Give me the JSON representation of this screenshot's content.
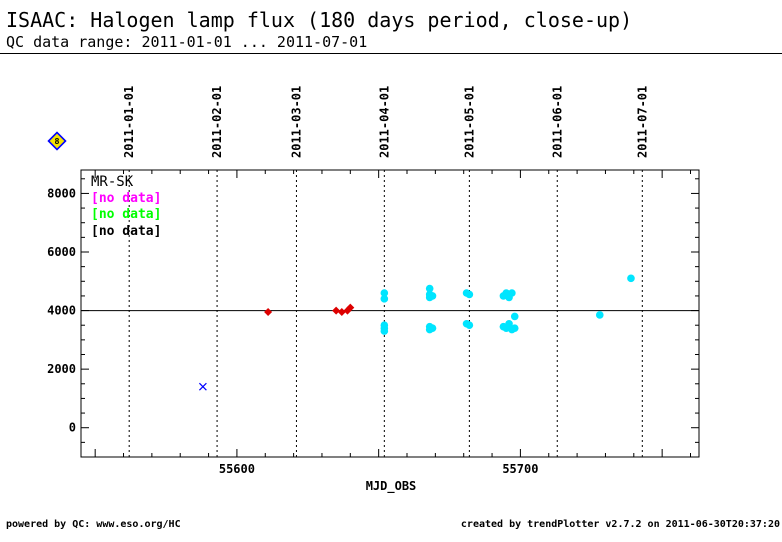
{
  "header": {
    "title": "ISAAC: Halogen lamp flux (180 days period, close-up)",
    "subtitle": "QC data range: 2011-01-01 ... 2011-07-01"
  },
  "footer": {
    "left": "powered by QC: www.eso.org/HC",
    "right": "created by trendPlotter v2.7.2 on 2011-06-30T20:37:20"
  },
  "badge": {
    "label": "8",
    "fill": "#f5e400",
    "stroke": "#0000ff"
  },
  "chart_data": {
    "type": "scatter",
    "xlabel": "MJD_OBS",
    "ylabel": "",
    "xlim": [
      55545,
      55763
    ],
    "ylim": [
      -1000,
      8800
    ],
    "xticks": [
      55600,
      55700
    ],
    "yticks": [
      0,
      2000,
      4000,
      6000,
      8000
    ],
    "reference_line": 4000,
    "month_lines": [
      {
        "x": 55562,
        "label": "2011-01-01"
      },
      {
        "x": 55593,
        "label": "2011-02-01"
      },
      {
        "x": 55621,
        "label": "2011-03-01"
      },
      {
        "x": 55652,
        "label": "2011-04-01"
      },
      {
        "x": 55682,
        "label": "2011-05-01"
      },
      {
        "x": 55713,
        "label": "2011-06-01"
      },
      {
        "x": 55743,
        "label": "2011-07-01"
      }
    ],
    "legend": {
      "title": "MR-SK",
      "entries": [
        {
          "text": "[no data]",
          "color": "#ff00ff"
        },
        {
          "text": "[no data]",
          "color": "#00ff00"
        },
        {
          "text": "[no data]",
          "color": "#000000"
        }
      ]
    },
    "series": [
      {
        "marker": "diamond",
        "color": "#dd0000",
        "points": [
          [
            55611,
            3950
          ],
          [
            55635,
            4000
          ],
          [
            55637,
            3950
          ],
          [
            55639,
            4000
          ],
          [
            55640,
            4100
          ]
        ]
      },
      {
        "marker": "circle",
        "color": "#00e5ff",
        "points": [
          [
            55652,
            4600
          ],
          [
            55652,
            4400
          ],
          [
            55652,
            3500
          ],
          [
            55652,
            3400
          ],
          [
            55652,
            3300
          ],
          [
            55668,
            4750
          ],
          [
            55668,
            4550
          ],
          [
            55668,
            4450
          ],
          [
            55668,
            3450
          ],
          [
            55668,
            3350
          ],
          [
            55669,
            3400
          ],
          [
            55669,
            4500
          ],
          [
            55681,
            4600
          ],
          [
            55682,
            4550
          ],
          [
            55681,
            3550
          ],
          [
            55682,
            3500
          ],
          [
            55694,
            4500
          ],
          [
            55695,
            4600
          ],
          [
            55696,
            4450
          ],
          [
            55697,
            4600
          ],
          [
            55694,
            3450
          ],
          [
            55695,
            3400
          ],
          [
            55696,
            3550
          ],
          [
            55697,
            3350
          ],
          [
            55698,
            3400
          ],
          [
            55698,
            3800
          ],
          [
            55728,
            3850
          ],
          [
            55739,
            5100
          ]
        ]
      },
      {
        "marker": "cross",
        "color": "#0000ff",
        "points": [
          [
            55588,
            1400
          ]
        ]
      }
    ]
  }
}
